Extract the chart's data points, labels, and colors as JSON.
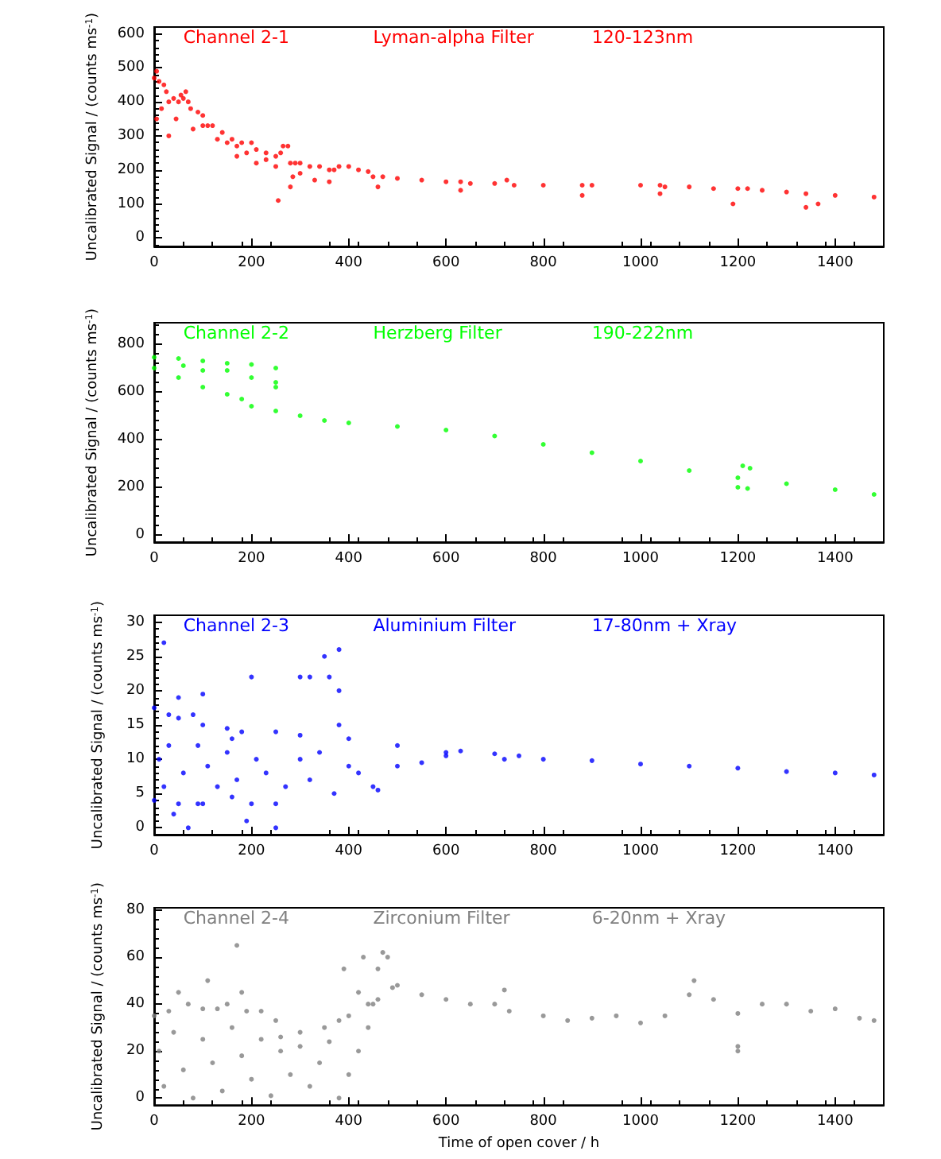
{
  "chart_data": [
    {
      "type": "scatter",
      "annotations": [
        "Channel 2-1",
        "Lyman-alpha Filter",
        "120-123nm"
      ],
      "ylabel": "Uncalibrated Signal / (counts ms$^{-1}$)",
      "xlim": [
        0,
        1500
      ],
      "xticks": [
        0,
        200,
        400,
        600,
        800,
        1000,
        1200,
        1400
      ],
      "ylim": [
        -25,
        620
      ],
      "yticks": [
        0,
        100,
        200,
        300,
        400,
        500,
        600
      ],
      "grid": false,
      "series": [
        {
          "color": "#ff0000",
          "x": [
            0,
            5,
            10,
            20,
            25,
            30,
            40,
            50,
            55,
            60,
            65,
            70,
            75,
            90,
            100,
            110,
            120,
            140,
            160,
            170,
            180,
            200,
            210,
            230,
            250,
            260,
            265,
            275,
            280,
            290,
            300,
            320,
            340,
            360,
            370,
            380,
            400,
            420,
            440,
            450,
            470,
            500,
            550,
            600,
            630,
            650,
            700,
            725,
            740,
            800,
            880,
            900,
            1000,
            1040,
            1050,
            1100,
            1150,
            1200,
            1220,
            1250,
            1300,
            1340,
            1400,
            1480,
            30,
            45,
            80,
            100,
            130,
            150,
            170,
            190,
            210,
            230,
            250,
            285,
            300,
            330,
            360,
            255,
            280,
            460,
            630,
            880,
            1040,
            1190,
            1340,
            1365,
            5,
            15
          ],
          "values": [
            470,
            490,
            460,
            450,
            430,
            400,
            410,
            400,
            420,
            410,
            430,
            400,
            380,
            370,
            360,
            330,
            330,
            310,
            290,
            270,
            280,
            280,
            260,
            250,
            240,
            250,
            270,
            270,
            220,
            220,
            220,
            210,
            210,
            200,
            200,
            210,
            210,
            200,
            195,
            180,
            180,
            175,
            170,
            165,
            165,
            160,
            160,
            170,
            155,
            155,
            155,
            155,
            155,
            155,
            150,
            150,
            145,
            145,
            145,
            140,
            135,
            130,
            125,
            120,
            300,
            350,
            320,
            330,
            290,
            280,
            240,
            250,
            220,
            230,
            210,
            180,
            190,
            170,
            165,
            110,
            150,
            150,
            140,
            125,
            130,
            100,
            90,
            100,
            350,
            380
          ]
        }
      ]
    },
    {
      "type": "scatter",
      "annotations": [
        "Channel 2-2",
        "Herzberg Filter",
        "190-222nm"
      ],
      "ylabel": "Uncalibrated Signal / (counts ms$^{-1}$)",
      "xlim": [
        0,
        1500
      ],
      "xticks": [
        0,
        200,
        400,
        600,
        800,
        1000,
        1200,
        1400
      ],
      "ylim": [
        -30,
        890
      ],
      "yticks": [
        0,
        200,
        400,
        600,
        800
      ],
      "grid": false,
      "series": [
        {
          "color": "#00ff00",
          "x": [
            0,
            50,
            100,
            150,
            180,
            200,
            250,
            300,
            350,
            400,
            500,
            600,
            700,
            800,
            900,
            1000,
            1100,
            1200,
            1210,
            1225,
            1300,
            1400,
            1480,
            0,
            50,
            100,
            150,
            200,
            250,
            100,
            200,
            250,
            250,
            60,
            150,
            1200,
            1220
          ],
          "values": [
            700,
            660,
            620,
            590,
            570,
            540,
            520,
            500,
            480,
            470,
            455,
            440,
            415,
            380,
            345,
            310,
            270,
            240,
            290,
            280,
            215,
            190,
            170,
            745,
            740,
            730,
            720,
            715,
            700,
            690,
            660,
            640,
            620,
            710,
            690,
            200,
            195
          ]
        }
      ]
    },
    {
      "type": "scatter",
      "annotations": [
        "Channel 2-3",
        "Aluminium Filter",
        "17-80nm + Xray"
      ],
      "ylabel": "Uncalibrated Signal / (counts ms$^{-1}$)",
      "xlim": [
        0,
        1500
      ],
      "xticks": [
        0,
        200,
        400,
        600,
        800,
        1000,
        1200,
        1400
      ],
      "ylim": [
        -1,
        31
      ],
      "yticks": [
        0,
        5,
        10,
        15,
        20,
        25,
        30
      ],
      "grid": false,
      "series": [
        {
          "color": "#0000ff",
          "x": [
            0,
            30,
            50,
            80,
            100,
            150,
            160,
            180,
            250,
            300,
            400,
            500,
            600,
            630,
            700,
            720,
            750,
            800,
            900,
            1000,
            1100,
            1200,
            1300,
            1400,
            1480,
            0,
            50,
            90,
            100,
            160,
            200,
            250,
            10,
            20,
            30,
            40,
            60,
            70,
            90,
            110,
            130,
            150,
            170,
            190,
            210,
            230,
            250,
            270,
            300,
            320,
            340,
            370,
            400,
            420,
            450,
            460,
            500,
            550,
            600,
            350,
            360,
            380,
            380,
            300,
            320,
            200,
            100,
            50,
            20,
            380
          ],
          "values": [
            17.5,
            16.5,
            16,
            16.5,
            15,
            14.5,
            13,
            14,
            14,
            13.5,
            13,
            12,
            11,
            11.2,
            10.8,
            10,
            10.5,
            10,
            9.8,
            9.3,
            9,
            8.7,
            8.2,
            8,
            7.7,
            4,
            3.5,
            3.5,
            3.5,
            4.5,
            3.5,
            3.5,
            10,
            6,
            12,
            2,
            8,
            0,
            12,
            9,
            6,
            11,
            7,
            1,
            10,
            8,
            0,
            6,
            10,
            7,
            11,
            5,
            9,
            8,
            6,
            5.5,
            9,
            9.5,
            10.5,
            25,
            22,
            20,
            15,
            22,
            22,
            22,
            19.5,
            19,
            27,
            26
          ]
        }
      ]
    },
    {
      "type": "scatter",
      "annotations": [
        "Channel 2-4",
        "Zirconium Filter",
        "6-20nm + Xray"
      ],
      "xlabel": "Time of open cover / h",
      "ylabel": "Uncalibrated Signal / (counts ms$^{-1}$)",
      "xlim": [
        0,
        1500
      ],
      "xticks": [
        0,
        200,
        400,
        600,
        800,
        1000,
        1200,
        1400
      ],
      "ylim": [
        -3,
        81
      ],
      "yticks": [
        0,
        20,
        40,
        60,
        80
      ],
      "grid": false,
      "series": [
        {
          "color": "#808080",
          "x": [
            0,
            30,
            50,
            70,
            100,
            110,
            130,
            150,
            170,
            180,
            190,
            220,
            250,
            260,
            300,
            350,
            380,
            390,
            400,
            420,
            430,
            440,
            460,
            480,
            490,
            500,
            550,
            600,
            650,
            700,
            720,
            730,
            800,
            850,
            900,
            950,
            1000,
            1050,
            1100,
            1110,
            1150,
            1200,
            1250,
            1300,
            1350,
            1400,
            1450,
            1480,
            10,
            20,
            40,
            60,
            80,
            100,
            120,
            140,
            160,
            180,
            200,
            220,
            240,
            260,
            280,
            300,
            320,
            340,
            360,
            380,
            400,
            420,
            440,
            450,
            460,
            470,
            1200,
            1200
          ],
          "values": [
            35,
            37,
            45,
            40,
            38,
            50,
            38,
            40,
            65,
            45,
            37,
            37,
            33,
            26,
            28,
            30,
            33,
            55,
            35,
            45,
            60,
            40,
            42,
            60,
            47,
            48,
            44,
            42,
            40,
            40,
            46,
            37,
            35,
            33,
            34,
            35,
            32,
            35,
            44,
            50,
            42,
            36,
            40,
            40,
            37,
            38,
            34,
            33,
            20,
            5,
            28,
            12,
            0,
            25,
            15,
            3,
            30,
            18,
            8,
            25,
            1,
            20,
            10,
            22,
            5,
            15,
            24,
            0,
            10,
            20,
            30,
            40,
            55,
            62,
            20,
            22
          ]
        }
      ]
    }
  ]
}
